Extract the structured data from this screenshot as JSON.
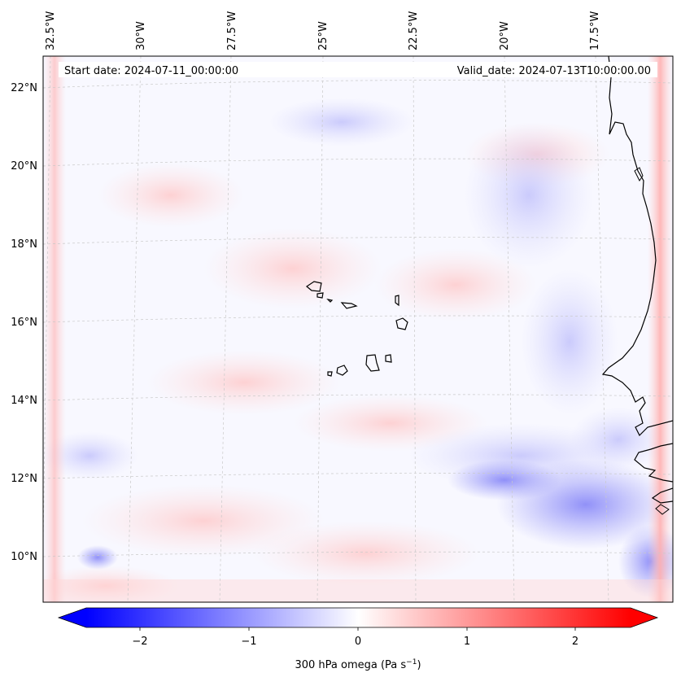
{
  "map": {
    "start_date": "Start date: 2024-07-11_00:00:00",
    "valid_date": "Valid_date: 2024-07-13T10:00:00.00",
    "lon_labels": [
      "32.5°W",
      "30°W",
      "27.5°W",
      "25°W",
      "22.5°W",
      "20°W",
      "17.5°W"
    ],
    "lat_labels": [
      "22°N",
      "20°N",
      "18°N",
      "16°N",
      "14°N",
      "12°N",
      "10°N"
    ],
    "colorbar": {
      "ticks": [
        "−2",
        "−1",
        "0",
        "1",
        "2"
      ],
      "label": "300 hPa omega (Pa s",
      "label_sup": "−1",
      "label_close": ")",
      "min_color": "#0000ff",
      "mid_color": "#ffffff",
      "max_color": "#ff0000"
    }
  }
}
